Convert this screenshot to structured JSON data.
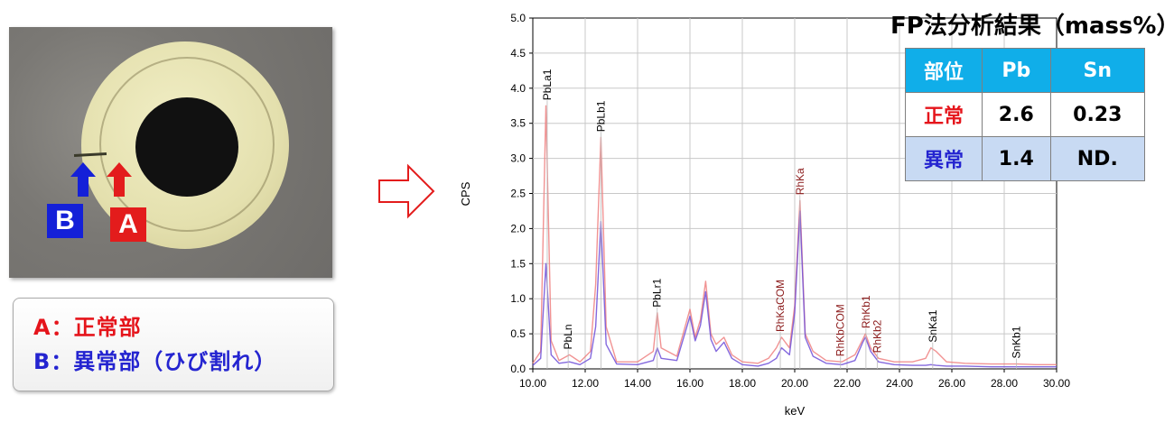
{
  "photo": {
    "marker_a": "A",
    "marker_b": "B"
  },
  "legend": {
    "line_a": "A：正常部",
    "line_b": "B：異常部（ひび割れ）"
  },
  "fp_result": {
    "title": "FP法分析結果（mass%）",
    "headers": [
      "部位",
      "Pb",
      "Sn"
    ],
    "rows": [
      {
        "label": "正常",
        "pb": "2.6",
        "sn": "0.23"
      },
      {
        "label": "異常",
        "pb": "1.4",
        "sn": "ND."
      }
    ]
  },
  "colors": {
    "normal_red": "#e5141b",
    "abnormal_blue": "#2424d0",
    "table_header": "#10aee9",
    "table_row2": "#c8daf3",
    "spectrum_normal": "#ee8080",
    "spectrum_abnormal": "#6f4fd8"
  },
  "chart_data": {
    "type": "line",
    "xlabel": "keV",
    "ylabel": "CPS",
    "xlim": [
      10.0,
      30.0
    ],
    "ylim": [
      0.0,
      5.0
    ],
    "xticks": [
      "10.00",
      "12.00",
      "14.00",
      "16.00",
      "18.00",
      "20.00",
      "22.00",
      "24.00",
      "26.00",
      "28.00",
      "30.00"
    ],
    "yticks": [
      "0.0",
      "0.5",
      "1.0",
      "1.5",
      "2.0",
      "2.5",
      "3.0",
      "3.5",
      "4.0",
      "4.5",
      "5.0"
    ],
    "series": [
      {
        "color": "#ee8080",
        "x": [
          10.0,
          10.3,
          10.5,
          10.7,
          11.0,
          11.4,
          11.8,
          12.2,
          12.4,
          12.6,
          12.8,
          13.2,
          14.0,
          14.6,
          14.75,
          14.9,
          15.5,
          16.0,
          16.2,
          16.4,
          16.6,
          16.8,
          17.0,
          17.3,
          17.6,
          18.0,
          18.6,
          19.0,
          19.3,
          19.5,
          19.8,
          20.0,
          20.2,
          20.4,
          20.7,
          21.2,
          21.8,
          22.3,
          22.6,
          22.7,
          22.9,
          23.2,
          23.8,
          24.5,
          25.0,
          25.2,
          25.4,
          25.8,
          26.5,
          27.5,
          28.5,
          29.2,
          30.0
        ],
        "y": [
          0.08,
          0.25,
          3.75,
          0.4,
          0.12,
          0.2,
          0.1,
          0.25,
          1.2,
          3.3,
          0.6,
          0.1,
          0.1,
          0.25,
          0.8,
          0.3,
          0.18,
          0.85,
          0.45,
          0.7,
          1.25,
          0.5,
          0.35,
          0.45,
          0.2,
          0.1,
          0.08,
          0.15,
          0.3,
          0.45,
          0.3,
          0.9,
          2.4,
          0.5,
          0.25,
          0.12,
          0.1,
          0.2,
          0.42,
          0.5,
          0.3,
          0.15,
          0.1,
          0.1,
          0.15,
          0.3,
          0.25,
          0.1,
          0.08,
          0.07,
          0.07,
          0.06,
          0.06
        ]
      },
      {
        "color": "#6f4fd8",
        "x": [
          10.0,
          10.3,
          10.5,
          10.7,
          11.0,
          11.4,
          11.8,
          12.2,
          12.4,
          12.6,
          12.8,
          13.2,
          14.0,
          14.6,
          14.75,
          14.9,
          15.5,
          16.0,
          16.2,
          16.4,
          16.6,
          16.8,
          17.0,
          17.3,
          17.6,
          18.0,
          18.6,
          19.0,
          19.3,
          19.5,
          19.8,
          20.0,
          20.2,
          20.4,
          20.7,
          21.2,
          21.8,
          22.3,
          22.6,
          22.7,
          22.9,
          23.2,
          23.8,
          24.5,
          25.0,
          25.2,
          25.4,
          25.8,
          26.5,
          27.5,
          28.5,
          29.2,
          30.0
        ],
        "y": [
          0.05,
          0.15,
          1.5,
          0.2,
          0.08,
          0.1,
          0.06,
          0.15,
          0.6,
          2.1,
          0.35,
          0.07,
          0.06,
          0.12,
          0.3,
          0.15,
          0.12,
          0.75,
          0.4,
          0.62,
          1.1,
          0.42,
          0.25,
          0.38,
          0.15,
          0.06,
          0.04,
          0.08,
          0.15,
          0.3,
          0.2,
          0.8,
          2.25,
          0.45,
          0.18,
          0.08,
          0.06,
          0.12,
          0.38,
          0.45,
          0.25,
          0.1,
          0.06,
          0.05,
          0.05,
          0.06,
          0.05,
          0.04,
          0.04,
          0.03,
          0.03,
          0.03,
          0.03
        ]
      }
    ],
    "annotations": [
      {
        "text": "PbLa1",
        "x": 10.55,
        "color": "#000000"
      },
      {
        "text": "PbLn",
        "x": 11.35,
        "color": "#000000"
      },
      {
        "text": "PbLb1",
        "x": 12.6,
        "color": "#000000"
      },
      {
        "text": "PbLr1",
        "x": 14.75,
        "color": "#000000"
      },
      {
        "text": "RhKaCOM",
        "x": 19.45,
        "color": "#8b1a1a"
      },
      {
        "text": "RhKa",
        "x": 20.2,
        "color": "#8b1a1a"
      },
      {
        "text": "RhKbCOM",
        "x": 21.75,
        "color": "#8b1a1a"
      },
      {
        "text": "RhKb1",
        "x": 22.72,
        "color": "#8b1a1a"
      },
      {
        "text": "RhKb2",
        "x": 23.15,
        "color": "#8b1a1a"
      },
      {
        "text": "SnKa1",
        "x": 25.27,
        "color": "#000000"
      },
      {
        "text": "SnKb1",
        "x": 28.47,
        "color": "#000000"
      }
    ]
  }
}
